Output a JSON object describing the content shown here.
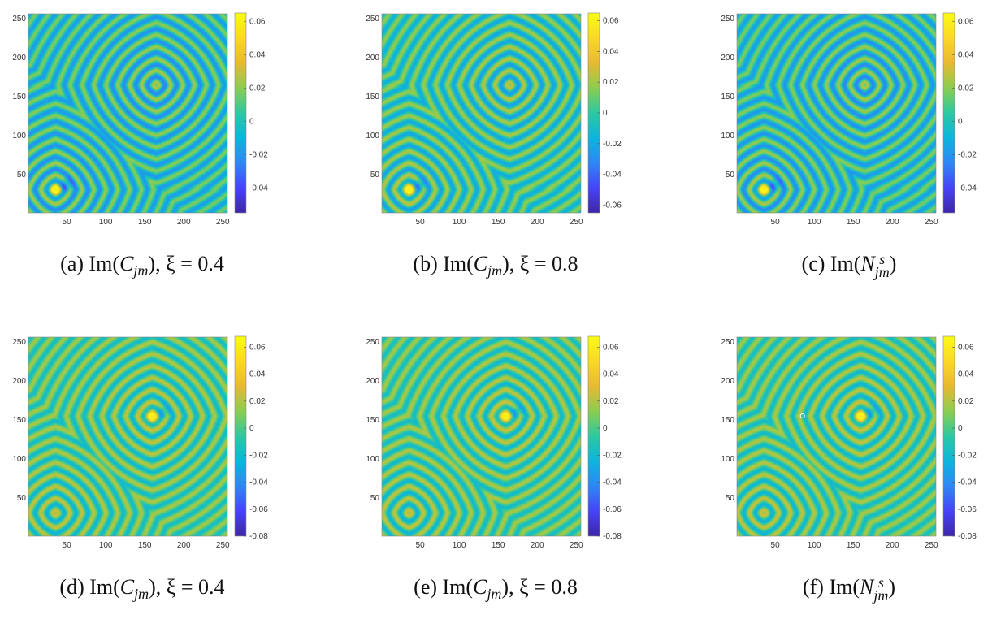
{
  "colormap": [
    "#3e26a8",
    "#4743f8",
    "#2e87f7",
    "#0cb5dc",
    "#2bc9a1",
    "#8ccd50",
    "#e8b930",
    "#fbd827",
    "#f9fb14"
  ],
  "heatmap_axes": {
    "x_ticks": [
      50,
      100,
      150,
      200,
      250
    ],
    "y_ticks": [
      50,
      100,
      150,
      200,
      250
    ],
    "range": [
      1,
      256
    ]
  },
  "chart_data": [
    {
      "type": "heatmap",
      "caption": "(a) Im(C_jm), ξ = 0.4",
      "caption_parts": {
        "label": "(a)",
        "fn": "Im(",
        "sym": "C",
        "sub": "jm",
        "sup": "",
        "tail": "), ξ = 0.4"
      },
      "x_ticks": [
        50,
        100,
        150,
        200,
        250
      ],
      "y_ticks": [
        50,
        100,
        150,
        200,
        250
      ],
      "colorbar": {
        "ticks": [
          "0.06",
          "0.04",
          "0.02",
          "0",
          "-0.02",
          "-0.04"
        ],
        "tick_values": [
          0.06,
          0.04,
          0.02,
          0,
          -0.02,
          -0.04
        ],
        "range": [
          -0.055,
          0.065
        ]
      },
      "pattern": {
        "centers": [
          [
            35,
            30
          ],
          [
            165,
            165
          ]
        ],
        "bright_spot": [
          35,
          30
        ],
        "ring_period": 14
      }
    },
    {
      "type": "heatmap",
      "caption": "(b) Im(C_jm), ξ = 0.8",
      "caption_parts": {
        "label": "(b)",
        "fn": "Im(",
        "sym": "C",
        "sub": "jm",
        "sup": "",
        "tail": "), ξ = 0.8"
      },
      "x_ticks": [
        50,
        100,
        150,
        200,
        250
      ],
      "y_ticks": [
        50,
        100,
        150,
        200,
        250
      ],
      "colorbar": {
        "ticks": [
          "0.06",
          "0.04",
          "0.02",
          "0",
          "-0.02",
          "-0.04",
          "-0.06"
        ],
        "tick_values": [
          0.06,
          0.04,
          0.02,
          0,
          -0.02,
          -0.04,
          -0.06
        ],
        "range": [
          -0.065,
          0.065
        ]
      },
      "pattern": {
        "centers": [
          [
            35,
            30
          ],
          [
            165,
            165
          ]
        ],
        "bright_spot": [
          35,
          30
        ],
        "ring_period": 14
      }
    },
    {
      "type": "heatmap",
      "caption": "(c) Im(N^s_jm)",
      "caption_parts": {
        "label": "(c)",
        "fn": "Im(",
        "sym": "N",
        "sub": "jm",
        "sup": "s",
        "tail": ")"
      },
      "x_ticks": [
        50,
        100,
        150,
        200,
        250
      ],
      "y_ticks": [
        50,
        100,
        150,
        200,
        250
      ],
      "colorbar": {
        "ticks": [
          "0.06",
          "0.04",
          "0.02",
          "0",
          "-0.02",
          "-0.04"
        ],
        "tick_values": [
          0.06,
          0.04,
          0.02,
          0,
          -0.02,
          -0.04
        ],
        "range": [
          -0.055,
          0.065
        ]
      },
      "pattern": {
        "centers": [
          [
            35,
            30
          ],
          [
            165,
            165
          ]
        ],
        "bright_spot": [
          35,
          30
        ],
        "ring_period": 14
      }
    },
    {
      "type": "heatmap",
      "caption": "(d) Im(C_jm), ξ = 0.4",
      "caption_parts": {
        "label": "(d)",
        "fn": "Im(",
        "sym": "C",
        "sub": "jm",
        "sup": "",
        "tail": "), ξ = 0.4"
      },
      "x_ticks": [
        50,
        100,
        150,
        200,
        250
      ],
      "y_ticks": [
        50,
        100,
        150,
        200,
        250
      ],
      "colorbar": {
        "ticks": [
          "0.06",
          "0.04",
          "0.02",
          "0",
          "-0.02",
          "-0.04",
          "-0.06",
          "-0.08"
        ],
        "tick_values": [
          0.06,
          0.04,
          0.02,
          0,
          -0.02,
          -0.04,
          -0.06,
          -0.08
        ],
        "range": [
          -0.08,
          0.068
        ]
      },
      "pattern": {
        "centers": [
          [
            160,
            155
          ],
          [
            35,
            30
          ]
        ],
        "bright_spot": [
          160,
          155
        ],
        "ring_period": 14
      }
    },
    {
      "type": "heatmap",
      "caption": "(e) Im(C_jm), ξ = 0.8",
      "caption_parts": {
        "label": "(e)",
        "fn": "Im(",
        "sym": "C",
        "sub": "jm",
        "sup": "",
        "tail": "), ξ = 0.8"
      },
      "x_ticks": [
        50,
        100,
        150,
        200,
        250
      ],
      "y_ticks": [
        50,
        100,
        150,
        200,
        250
      ],
      "colorbar": {
        "ticks": [
          "0.06",
          "0.04",
          "0.02",
          "0",
          "-0.02",
          "-0.04",
          "-0.06",
          "-0.08"
        ],
        "tick_values": [
          0.06,
          0.04,
          0.02,
          0,
          -0.02,
          -0.04,
          -0.06,
          -0.08
        ],
        "range": [
          -0.08,
          0.068
        ]
      },
      "pattern": {
        "centers": [
          [
            160,
            155
          ],
          [
            35,
            30
          ]
        ],
        "bright_spot": [
          160,
          155
        ],
        "ring_period": 14
      }
    },
    {
      "type": "heatmap",
      "caption": "(f) Im(N^s_jm)",
      "caption_parts": {
        "label": "(f)",
        "fn": "Im(",
        "sym": "N",
        "sub": "jm",
        "sup": "s",
        "tail": ")"
      },
      "x_ticks": [
        50,
        100,
        150,
        200,
        250
      ],
      "y_ticks": [
        50,
        100,
        150,
        200,
        250
      ],
      "colorbar": {
        "ticks": [
          "0.06",
          "0.04",
          "0.02",
          "0",
          "-0.02",
          "-0.04",
          "-0.06",
          "-0.08"
        ],
        "tick_values": [
          0.06,
          0.04,
          0.02,
          0,
          -0.02,
          -0.04,
          -0.06,
          -0.08
        ],
        "range": [
          -0.08,
          0.068
        ]
      },
      "pattern": {
        "centers": [
          [
            160,
            155
          ],
          [
            35,
            30
          ]
        ],
        "bright_spot": [
          160,
          155
        ],
        "ring_period": 14,
        "marker": [
          85,
          155
        ]
      }
    }
  ]
}
